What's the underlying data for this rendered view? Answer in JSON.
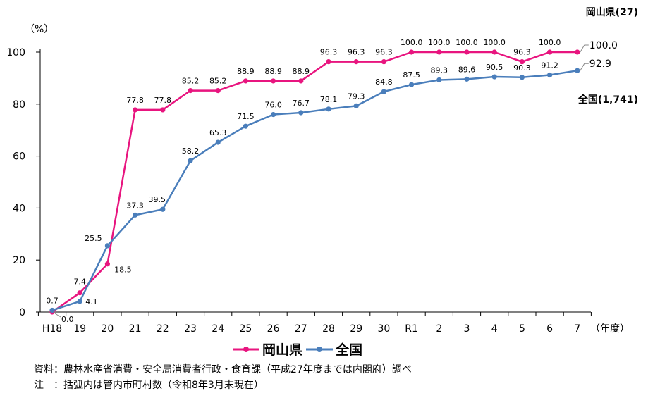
{
  "chart_data": {
    "type": "line",
    "ylabel": "（%）",
    "xlabel": "（年度）",
    "ylim": [
      0,
      100
    ],
    "yticks": [
      "0",
      "20",
      "40",
      "60",
      "80",
      "100"
    ],
    "categories": [
      "H18",
      "19",
      "20",
      "21",
      "22",
      "23",
      "24",
      "25",
      "26",
      "27",
      "28",
      "29",
      "30",
      "R1",
      "2",
      "3",
      "4",
      "5",
      "6",
      "7"
    ],
    "grid": false,
    "legend_position": "bottom",
    "series": [
      {
        "name": "岡山県",
        "color": "#e8157f",
        "values": [
          0,
          7.4,
          18.5,
          77.8,
          77.8,
          85.2,
          85.2,
          88.9,
          88.9,
          88.9,
          96.3,
          96.3,
          96.3,
          100,
          100,
          100,
          100,
          96.3,
          100,
          100
        ],
        "labels": [
          "0.0",
          "7.4",
          "18.5",
          "77.8",
          "77.8",
          "85.2",
          "85.2",
          "88.9",
          "88.9",
          "88.9",
          "96.3",
          "96.3",
          "96.3",
          "100.0",
          "100.0",
          "100.0",
          "100.0",
          "96.3",
          "100.0",
          "100.0"
        ],
        "end_annotation": "岡山県(27)"
      },
      {
        "name": "全国",
        "color": "#4a7ebb",
        "values": [
          0.7,
          4.1,
          25.5,
          37.3,
          39.5,
          58.2,
          65.3,
          71.5,
          76.0,
          76.7,
          78.1,
          79.3,
          84.8,
          87.5,
          89.3,
          89.6,
          90.5,
          90.3,
          91.2,
          92.9
        ],
        "labels": [
          "0.7",
          "4.1",
          "25.5",
          "37.3",
          "39.5",
          "58.2",
          "65.3",
          "71.5",
          "76.0",
          "76.7",
          "78.1",
          "79.3",
          "84.8",
          "87.5",
          "89.3",
          "89.6",
          "90.5",
          "90.3",
          "91.2",
          "92.9"
        ],
        "end_annotation": "全国(1,741)"
      }
    ]
  },
  "notes": {
    "source": "資料：農林水産省消費・安全局消費者行政・食育課（平成27年度までは内閣府）調べ",
    "note": "注　：括弧内は管内市町村数（令和8年3月末現在）"
  }
}
